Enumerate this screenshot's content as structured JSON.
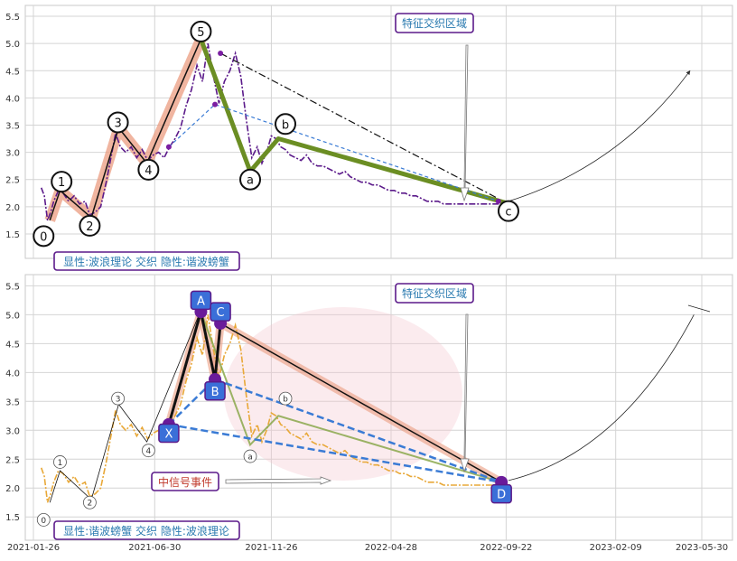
{
  "chart_data": [
    {
      "type": "line",
      "panel": "top",
      "ylim": [
        1.3,
        5.6
      ],
      "y_ticks": [
        "1.5",
        "2.0",
        "2.5",
        "3.0",
        "3.5",
        "4.0",
        "4.5",
        "5.0",
        "5.5"
      ],
      "grid": true,
      "series": [
        {
          "style": "price dashdot purple",
          "x": [
            "2021-02-05",
            "2021-02-09",
            "2021-02-13",
            "2021-02-17",
            "2021-02-21",
            "2021-02-27",
            "2021-03-05",
            "2021-03-12",
            "2021-03-19",
            "2021-03-26",
            "2021-04-02",
            "2021-04-08",
            "2021-04-15",
            "2021-04-22",
            "2021-04-29",
            "2021-05-05",
            "2021-05-11",
            "2021-05-17",
            "2021-05-24",
            "2021-05-31",
            "2021-06-07",
            "2021-06-14",
            "2021-06-21",
            "2021-06-28",
            "2021-07-05",
            "2021-07-12",
            "2021-07-19",
            "2021-07-26",
            "2021-08-02",
            "2021-08-09",
            "2021-08-16",
            "2021-08-23",
            "2021-08-30",
            "2021-09-06",
            "2021-09-13",
            "2021-09-20",
            "2021-09-27",
            "2021-10-04",
            "2021-10-11",
            "2021-10-18",
            "2021-10-25",
            "2021-11-01",
            "2021-11-08",
            "2021-11-14",
            "2021-11-20",
            "2021-11-26",
            "2021-12-02",
            "2021-12-08",
            "2021-12-14",
            "2021-12-20",
            "2021-12-27",
            "2022-01-03",
            "2022-01-10",
            "2022-01-17",
            "2022-01-24",
            "2022-01-31",
            "2022-02-07",
            "2022-02-14",
            "2022-02-21",
            "2022-02-28",
            "2022-03-07",
            "2022-03-14",
            "2022-03-21",
            "2022-03-28",
            "2022-04-04",
            "2022-04-11",
            "2022-04-18",
            "2022-04-25",
            "2022-05-02",
            "2022-05-09",
            "2022-05-16",
            "2022-05-23",
            "2022-05-30",
            "2022-06-06",
            "2022-06-13",
            "2022-06-20",
            "2022-06-27",
            "2022-07-04",
            "2022-07-11",
            "2022-07-18",
            "2022-07-25",
            "2022-08-01",
            "2022-08-08",
            "2022-08-15",
            "2022-08-22",
            "2022-08-29",
            "2022-09-05",
            "2022-09-12",
            "2022-09-19"
          ],
          "values": [
            2.35,
            2.2,
            1.75,
            1.9,
            2.1,
            2.3,
            2.25,
            2.1,
            2.2,
            2.05,
            2.1,
            1.85,
            1.9,
            2.0,
            2.45,
            2.9,
            3.35,
            3.1,
            3.0,
            3.1,
            2.9,
            3.05,
            2.85,
            2.95,
            3.0,
            2.9,
            3.1,
            3.25,
            3.45,
            3.85,
            4.15,
            4.6,
            4.3,
            5.0,
            4.4,
            3.9,
            4.3,
            4.5,
            4.82,
            4.4,
            3.6,
            2.9,
            3.1,
            2.8,
            3.0,
            3.3,
            3.25,
            3.1,
            3.05,
            2.95,
            2.9,
            2.85,
            2.95,
            2.8,
            2.75,
            2.75,
            2.7,
            2.65,
            2.6,
            2.65,
            2.55,
            2.5,
            2.45,
            2.45,
            2.4,
            2.4,
            2.35,
            2.3,
            2.3,
            2.25,
            2.25,
            2.2,
            2.2,
            2.15,
            2.1,
            2.1,
            2.1,
            2.05,
            2.05,
            2.05,
            2.05,
            2.05,
            2.05,
            2.05,
            2.05,
            2.05,
            2.05,
            2.05,
            2.05
          ]
        },
        {
          "style": "wave path black on salmon band",
          "points": [
            [
              "2021-02-16",
              1.75
            ],
            [
              "2021-03-01",
              2.3
            ],
            [
              "2021-04-10",
              1.8
            ],
            [
              "2021-05-15",
              3.45
            ],
            [
              "2021-06-20",
              2.8
            ],
            [
              "2021-08-28",
              5.08
            ]
          ]
        },
        {
          "style": "corrective path olive green",
          "points": [
            [
              "2021-08-28",
              5.08
            ],
            [
              "2021-10-30",
              2.65
            ],
            [
              "2021-12-05",
              3.25
            ],
            [
              "2022-09-22",
              2.07
            ]
          ]
        },
        {
          "style": "dash-dot trend black",
          "points": [
            [
              "2021-09-22",
              4.82
            ],
            [
              "2022-09-12",
              2.15
            ]
          ]
        },
        {
          "style": "dashed trend blue",
          "points": [
            [
              "2021-07-18",
              3.1
            ],
            [
              "2021-09-15",
              3.88
            ],
            [
              "2022-09-12",
              2.1
            ]
          ]
        },
        {
          "style": "projection thin black",
          "points": [
            [
              "2022-09-25",
              2.1
            ],
            [
              "2023-02-15",
              2.75
            ],
            [
              "2023-05-15",
              4.5
            ]
          ]
        }
      ],
      "point_labels": [
        {
          "text": "0",
          "x": "2021-02-08",
          "y": 1.46
        },
        {
          "text": "1",
          "x": "2021-03-03",
          "y": 2.46
        },
        {
          "text": "2",
          "x": "2021-04-08",
          "y": 1.65
        },
        {
          "text": "3",
          "x": "2021-05-14",
          "y": 3.55
        },
        {
          "text": "4",
          "x": "2021-06-22",
          "y": 2.68
        },
        {
          "text": "5",
          "x": "2021-08-28",
          "y": 5.22
        },
        {
          "text": "a",
          "x": "2021-10-30",
          "y": 2.5
        },
        {
          "text": "b",
          "x": "2021-12-14",
          "y": 3.52
        },
        {
          "text": "c",
          "x": "2022-09-25",
          "y": 1.92
        }
      ],
      "annotations": {
        "feature_box": "特征交织区域",
        "legend_box": "显性:波浪理论 交织 隐性:谐波螃蟹"
      }
    },
    {
      "type": "line",
      "panel": "bottom",
      "ylim": [
        1.3,
        5.6
      ],
      "y_ticks": [
        "1.5",
        "2.0",
        "2.5",
        "3.0",
        "3.5",
        "4.0",
        "4.5",
        "5.0",
        "5.5"
      ],
      "x_ticks": [
        "2021-01-26",
        "2021-06-30",
        "2021-11-26",
        "2022-04-28",
        "2022-09-22",
        "2023-02-09",
        "2023-05-30"
      ],
      "grid": true,
      "series": [
        {
          "style": "price dashdot orange",
          "x": [
            "2021-02-05",
            "2021-02-09",
            "2021-02-13",
            "2021-02-17",
            "2021-02-21",
            "2021-02-27",
            "2021-03-05",
            "2021-03-12",
            "2021-03-19",
            "2021-03-26",
            "2021-04-02",
            "2021-04-08",
            "2021-04-15",
            "2021-04-22",
            "2021-04-29",
            "2021-05-05",
            "2021-05-11",
            "2021-05-17",
            "2021-05-24",
            "2021-05-31",
            "2021-06-07",
            "2021-06-14",
            "2021-06-21",
            "2021-06-28",
            "2021-07-05",
            "2021-07-12",
            "2021-07-19",
            "2021-07-26",
            "2021-08-02",
            "2021-08-09",
            "2021-08-16",
            "2021-08-23",
            "2021-08-30",
            "2021-09-06",
            "2021-09-13",
            "2021-09-20",
            "2021-09-27",
            "2021-10-04",
            "2021-10-11",
            "2021-10-18",
            "2021-10-25",
            "2021-11-01",
            "2021-11-08",
            "2021-11-14",
            "2021-11-20",
            "2021-11-26",
            "2021-12-02",
            "2021-12-08",
            "2021-12-14",
            "2021-12-20",
            "2021-12-27",
            "2022-01-03",
            "2022-01-10",
            "2022-01-17",
            "2022-01-24",
            "2022-01-31",
            "2022-02-07",
            "2022-02-14",
            "2022-02-21",
            "2022-02-28",
            "2022-03-07",
            "2022-03-14",
            "2022-03-21",
            "2022-03-28",
            "2022-04-04",
            "2022-04-11",
            "2022-04-18",
            "2022-04-25",
            "2022-05-02",
            "2022-05-09",
            "2022-05-16",
            "2022-05-23",
            "2022-05-30",
            "2022-06-06",
            "2022-06-13",
            "2022-06-20",
            "2022-06-27",
            "2022-07-04",
            "2022-07-11",
            "2022-07-18",
            "2022-07-25",
            "2022-08-01",
            "2022-08-08",
            "2022-08-15",
            "2022-08-22",
            "2022-08-29",
            "2022-09-05",
            "2022-09-12",
            "2022-09-19"
          ],
          "values": [
            2.35,
            2.2,
            1.75,
            1.9,
            2.1,
            2.3,
            2.25,
            2.1,
            2.2,
            2.05,
            2.1,
            1.85,
            1.9,
            2.0,
            2.45,
            2.9,
            3.35,
            3.1,
            3.0,
            3.1,
            2.9,
            3.05,
            2.85,
            2.95,
            3.0,
            2.9,
            3.1,
            3.25,
            3.45,
            3.85,
            4.15,
            4.6,
            4.3,
            5.0,
            4.4,
            3.9,
            4.3,
            4.5,
            4.82,
            4.4,
            3.6,
            2.9,
            3.1,
            2.8,
            3.0,
            3.3,
            3.25,
            3.1,
            3.05,
            2.95,
            2.9,
            2.85,
            2.95,
            2.8,
            2.75,
            2.75,
            2.7,
            2.65,
            2.6,
            2.65,
            2.55,
            2.5,
            2.45,
            2.45,
            2.4,
            2.4,
            2.35,
            2.3,
            2.3,
            2.25,
            2.25,
            2.2,
            2.2,
            2.15,
            2.1,
            2.1,
            2.1,
            2.05,
            2.05,
            2.05,
            2.05,
            2.05,
            2.05,
            2.05,
            2.05,
            2.05,
            2.05,
            2.05,
            2.05
          ]
        },
        {
          "style": "wave path thin black",
          "points": [
            [
              "2021-02-16",
              1.75
            ],
            [
              "2021-03-01",
              2.3
            ],
            [
              "2021-04-10",
              1.8
            ],
            [
              "2021-05-15",
              3.45
            ],
            [
              "2021-06-20",
              2.8
            ],
            [
              "2021-08-28",
              5.08
            ]
          ]
        },
        {
          "style": "harmonic XA BC legs black on salmon",
          "points": [
            [
              "2021-07-18",
              3.1
            ],
            [
              "2021-08-28",
              5.05
            ],
            [
              "2021-09-15",
              3.88
            ],
            [
              "2021-09-22",
              4.85
            ],
            [
              "2022-09-16",
              2.1
            ]
          ]
        },
        {
          "style": "corrective path olive",
          "points": [
            [
              "2021-08-28",
              5.05
            ],
            [
              "2021-10-30",
              2.75
            ],
            [
              "2021-12-05",
              3.25
            ],
            [
              "2022-09-16",
              2.1
            ]
          ]
        },
        {
          "style": "dashed harmonic blue",
          "points": [
            [
              "2021-07-18",
              3.1
            ],
            [
              "2022-09-16",
              2.1
            ],
            [
              "2021-09-15",
              3.88
            ],
            [
              "2021-10-30",
              2.75
            ]
          ]
        },
        {
          "style": "projection thin black",
          "points": [
            [
              "2022-09-25",
              2.13
            ],
            [
              "2023-02-15",
              2.6
            ],
            [
              "2023-05-20",
              5.0
            ]
          ]
        }
      ],
      "point_labels": [
        {
          "text": "0",
          "x": "2021-02-08",
          "y": 1.45
        },
        {
          "text": "1",
          "x": "2021-03-01",
          "y": 2.45
        },
        {
          "text": "2",
          "x": "2021-04-08",
          "y": 1.75
        },
        {
          "text": "3",
          "x": "2021-05-14",
          "y": 3.55
        },
        {
          "text": "4",
          "x": "2021-06-22",
          "y": 2.65
        },
        {
          "text": "a",
          "x": "2021-10-30",
          "y": 2.55
        },
        {
          "text": "b",
          "x": "2021-12-14",
          "y": 3.55
        }
      ],
      "harmonic_points": [
        {
          "text": "X",
          "x": "2021-07-18",
          "y": 2.95
        },
        {
          "text": "A",
          "x": "2021-08-28",
          "y": 5.25
        },
        {
          "text": "B",
          "x": "2021-09-15",
          "y": 3.68
        },
        {
          "text": "C",
          "x": "2021-09-22",
          "y": 5.05
        },
        {
          "text": "D",
          "x": "2022-09-16",
          "y": 1.9
        }
      ],
      "annotations": {
        "feature_box": "特征交织区域",
        "signal_box": "中信号事件",
        "legend_box": "显性:谐波螃蟹 交织 隐性:波浪理论"
      }
    }
  ]
}
